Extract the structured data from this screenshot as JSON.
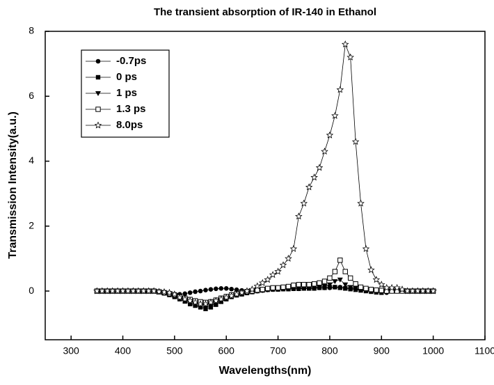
{
  "chart_data": {
    "type": "line",
    "title": "The transient absorption of IR-140 in Ethanol",
    "x_label": "Wavelengths(nm)",
    "y_label": "Transmission Intensity(a.u.)",
    "x": [
      350,
      360,
      370,
      380,
      390,
      400,
      410,
      420,
      430,
      440,
      450,
      460,
      470,
      480,
      490,
      500,
      510,
      520,
      530,
      540,
      550,
      560,
      570,
      580,
      590,
      600,
      610,
      620,
      630,
      640,
      650,
      660,
      670,
      680,
      690,
      700,
      710,
      720,
      730,
      740,
      750,
      760,
      770,
      780,
      790,
      800,
      810,
      820,
      830,
      840,
      850,
      860,
      870,
      880,
      890,
      900,
      910,
      920,
      930,
      940,
      950,
      960,
      970,
      980,
      990,
      1000
    ],
    "xlim": [
      250,
      1100
    ],
    "xticks": [
      300,
      400,
      500,
      600,
      700,
      800,
      900,
      1000,
      1100
    ],
    "ylim": [
      -1.5,
      8
    ],
    "yticks": [
      0,
      2,
      4,
      6,
      8
    ],
    "legend": "upper left",
    "series": [
      {
        "name": "-0.7ps",
        "marker": "circle",
        "color": "#000000",
        "values": [
          0,
          0,
          0,
          0,
          0,
          0,
          0,
          0,
          0,
          0,
          0,
          0,
          -0.02,
          -0.04,
          -0.07,
          -0.1,
          -0.1,
          -0.08,
          -0.05,
          -0.02,
          0,
          0.03,
          0.05,
          0.07,
          0.08,
          0.08,
          0.06,
          0.04,
          0.02,
          0,
          0,
          0.02,
          0.03,
          0.04,
          0.05,
          0.05,
          0.06,
          0.06,
          0.07,
          0.07,
          0.08,
          0.08,
          0.08,
          0.1,
          0.1,
          0.1,
          0.12,
          0.12,
          0.1,
          0.08,
          0.06,
          0.04,
          0.02,
          0,
          -0.02,
          -0.04,
          -0.05,
          0,
          0,
          0,
          0,
          0,
          0,
          0,
          0,
          0
        ]
      },
      {
        "name": "0 ps",
        "marker": "square",
        "color": "#000000",
        "values": [
          0,
          0,
          0,
          0,
          0,
          0,
          0,
          0,
          0,
          0,
          0,
          0,
          -0.03,
          -0.07,
          -0.12,
          -0.18,
          -0.25,
          -0.32,
          -0.4,
          -0.45,
          -0.5,
          -0.55,
          -0.5,
          -0.42,
          -0.33,
          -0.25,
          -0.18,
          -0.13,
          -0.1,
          -0.06,
          -0.03,
          0,
          0.02,
          0.04,
          0.05,
          0.05,
          0.06,
          0.06,
          0.07,
          0.07,
          0.08,
          0.08,
          0.08,
          0.1,
          0.1,
          0.12,
          0.12,
          0.1,
          0.08,
          0.06,
          0.04,
          0.02,
          0,
          -0.02,
          -0.04,
          -0.05,
          0,
          0,
          0,
          0,
          0,
          0,
          0,
          0,
          0,
          0
        ]
      },
      {
        "name": "1 ps",
        "marker": "triangle-down",
        "color": "#000000",
        "values": [
          0,
          0,
          0,
          0,
          0,
          0,
          0,
          0,
          0,
          0,
          0,
          0,
          -0.03,
          -0.06,
          -0.1,
          -0.15,
          -0.22,
          -0.28,
          -0.35,
          -0.42,
          -0.48,
          -0.5,
          -0.45,
          -0.38,
          -0.3,
          -0.22,
          -0.16,
          -0.12,
          -0.08,
          -0.05,
          -0.02,
          0,
          0.02,
          0.04,
          0.05,
          0.06,
          0.07,
          0.08,
          0.1,
          0.1,
          0.1,
          0.1,
          0.12,
          0.12,
          0.15,
          0.2,
          0.3,
          0.35,
          0.2,
          0.12,
          0.08,
          0.05,
          0.03,
          0.02,
          0,
          0,
          0,
          0,
          0,
          0,
          0,
          0,
          0,
          0,
          0,
          0
        ]
      },
      {
        "name": "1.3 ps",
        "marker": "open-square",
        "color": "#000000",
        "values": [
          0,
          0,
          0,
          0,
          0,
          0,
          0,
          0,
          0,
          0,
          0,
          0,
          -0.02,
          -0.05,
          -0.08,
          -0.12,
          -0.18,
          -0.22,
          -0.26,
          -0.3,
          -0.33,
          -0.35,
          -0.33,
          -0.28,
          -0.22,
          -0.17,
          -0.12,
          -0.08,
          -0.05,
          -0.02,
          0,
          0.03,
          0.05,
          0.08,
          0.1,
          0.1,
          0.12,
          0.14,
          0.18,
          0.2,
          0.2,
          0.2,
          0.22,
          0.25,
          0.3,
          0.4,
          0.6,
          0.95,
          0.6,
          0.4,
          0.22,
          0.12,
          0.08,
          0.05,
          0.03,
          0.02,
          0,
          0,
          0,
          0,
          0,
          0,
          0,
          0,
          0,
          0
        ]
      },
      {
        "name": "8.0ps",
        "marker": "open-star",
        "color": "#000000",
        "values": [
          0,
          0,
          0,
          0,
          0,
          0,
          0,
          0,
          0,
          0,
          0,
          0,
          -0.02,
          -0.03,
          -0.05,
          -0.1,
          -0.2,
          -0.25,
          -0.3,
          -0.35,
          -0.4,
          -0.4,
          -0.35,
          -0.3,
          -0.25,
          -0.2,
          -0.15,
          -0.1,
          -0.05,
          0,
          0.05,
          0.15,
          0.25,
          0.35,
          0.5,
          0.6,
          0.8,
          1.0,
          1.3,
          2.3,
          2.7,
          3.2,
          3.5,
          3.8,
          4.3,
          4.8,
          5.4,
          6.2,
          7.6,
          7.2,
          4.6,
          2.7,
          1.3,
          0.65,
          0.35,
          0.2,
          0.1,
          0.1,
          0.1,
          0.05,
          0,
          0,
          0,
          0,
          0,
          0
        ]
      }
    ]
  }
}
